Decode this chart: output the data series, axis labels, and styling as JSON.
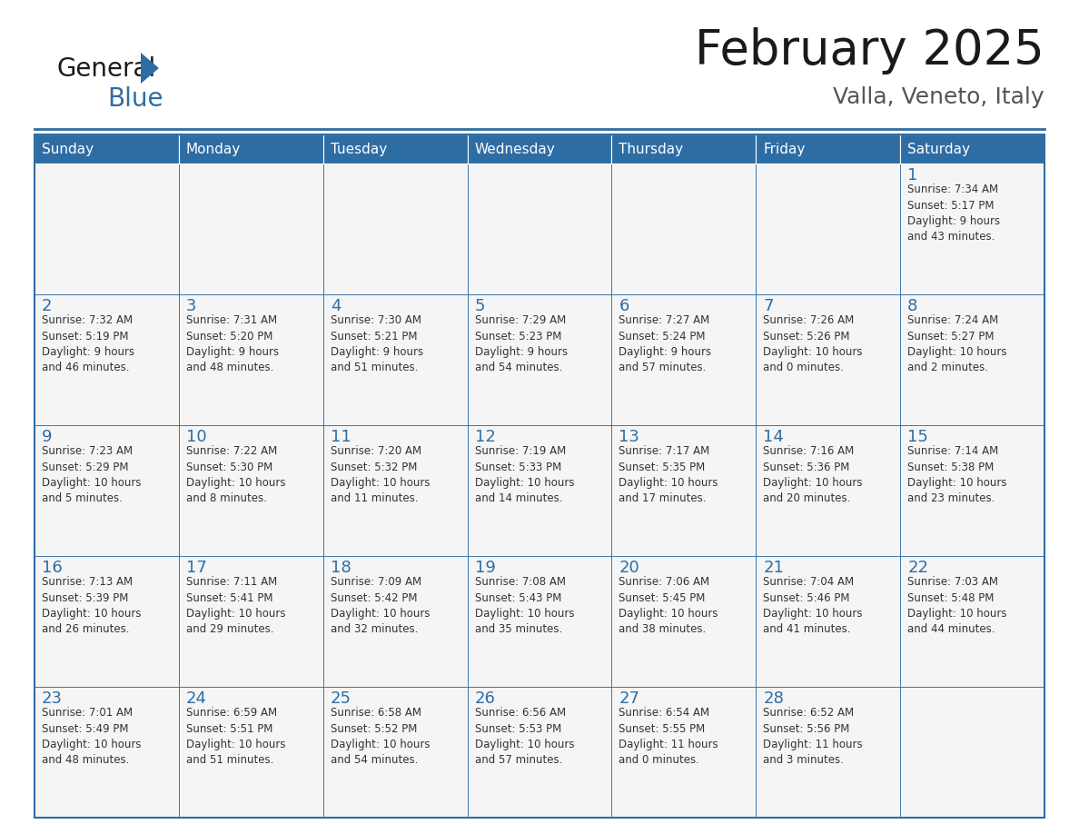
{
  "title": "February 2025",
  "subtitle": "Valla, Veneto, Italy",
  "header_bg": "#2E6DA4",
  "header_text": "#FFFFFF",
  "cell_bg": "#F5F5F5",
  "border_color": "#2E6DA4",
  "day_names": [
    "Sunday",
    "Monday",
    "Tuesday",
    "Wednesday",
    "Thursday",
    "Friday",
    "Saturday"
  ],
  "title_color": "#1a1a1a",
  "subtitle_color": "#555555",
  "day_number_color": "#2E6DA4",
  "cell_text_color": "#333333",
  "logo_general_color": "#1a1a1a",
  "logo_blue_color": "#2E6DA4",
  "logo_triangle_color": "#2E6DA4",
  "weeks": [
    [
      {
        "day": "",
        "info": ""
      },
      {
        "day": "",
        "info": ""
      },
      {
        "day": "",
        "info": ""
      },
      {
        "day": "",
        "info": ""
      },
      {
        "day": "",
        "info": ""
      },
      {
        "day": "",
        "info": ""
      },
      {
        "day": "1",
        "info": "Sunrise: 7:34 AM\nSunset: 5:17 PM\nDaylight: 9 hours\nand 43 minutes."
      }
    ],
    [
      {
        "day": "2",
        "info": "Sunrise: 7:32 AM\nSunset: 5:19 PM\nDaylight: 9 hours\nand 46 minutes."
      },
      {
        "day": "3",
        "info": "Sunrise: 7:31 AM\nSunset: 5:20 PM\nDaylight: 9 hours\nand 48 minutes."
      },
      {
        "day": "4",
        "info": "Sunrise: 7:30 AM\nSunset: 5:21 PM\nDaylight: 9 hours\nand 51 minutes."
      },
      {
        "day": "5",
        "info": "Sunrise: 7:29 AM\nSunset: 5:23 PM\nDaylight: 9 hours\nand 54 minutes."
      },
      {
        "day": "6",
        "info": "Sunrise: 7:27 AM\nSunset: 5:24 PM\nDaylight: 9 hours\nand 57 minutes."
      },
      {
        "day": "7",
        "info": "Sunrise: 7:26 AM\nSunset: 5:26 PM\nDaylight: 10 hours\nand 0 minutes."
      },
      {
        "day": "8",
        "info": "Sunrise: 7:24 AM\nSunset: 5:27 PM\nDaylight: 10 hours\nand 2 minutes."
      }
    ],
    [
      {
        "day": "9",
        "info": "Sunrise: 7:23 AM\nSunset: 5:29 PM\nDaylight: 10 hours\nand 5 minutes."
      },
      {
        "day": "10",
        "info": "Sunrise: 7:22 AM\nSunset: 5:30 PM\nDaylight: 10 hours\nand 8 minutes."
      },
      {
        "day": "11",
        "info": "Sunrise: 7:20 AM\nSunset: 5:32 PM\nDaylight: 10 hours\nand 11 minutes."
      },
      {
        "day": "12",
        "info": "Sunrise: 7:19 AM\nSunset: 5:33 PM\nDaylight: 10 hours\nand 14 minutes."
      },
      {
        "day": "13",
        "info": "Sunrise: 7:17 AM\nSunset: 5:35 PM\nDaylight: 10 hours\nand 17 minutes."
      },
      {
        "day": "14",
        "info": "Sunrise: 7:16 AM\nSunset: 5:36 PM\nDaylight: 10 hours\nand 20 minutes."
      },
      {
        "day": "15",
        "info": "Sunrise: 7:14 AM\nSunset: 5:38 PM\nDaylight: 10 hours\nand 23 minutes."
      }
    ],
    [
      {
        "day": "16",
        "info": "Sunrise: 7:13 AM\nSunset: 5:39 PM\nDaylight: 10 hours\nand 26 minutes."
      },
      {
        "day": "17",
        "info": "Sunrise: 7:11 AM\nSunset: 5:41 PM\nDaylight: 10 hours\nand 29 minutes."
      },
      {
        "day": "18",
        "info": "Sunrise: 7:09 AM\nSunset: 5:42 PM\nDaylight: 10 hours\nand 32 minutes."
      },
      {
        "day": "19",
        "info": "Sunrise: 7:08 AM\nSunset: 5:43 PM\nDaylight: 10 hours\nand 35 minutes."
      },
      {
        "day": "20",
        "info": "Sunrise: 7:06 AM\nSunset: 5:45 PM\nDaylight: 10 hours\nand 38 minutes."
      },
      {
        "day": "21",
        "info": "Sunrise: 7:04 AM\nSunset: 5:46 PM\nDaylight: 10 hours\nand 41 minutes."
      },
      {
        "day": "22",
        "info": "Sunrise: 7:03 AM\nSunset: 5:48 PM\nDaylight: 10 hours\nand 44 minutes."
      }
    ],
    [
      {
        "day": "23",
        "info": "Sunrise: 7:01 AM\nSunset: 5:49 PM\nDaylight: 10 hours\nand 48 minutes."
      },
      {
        "day": "24",
        "info": "Sunrise: 6:59 AM\nSunset: 5:51 PM\nDaylight: 10 hours\nand 51 minutes."
      },
      {
        "day": "25",
        "info": "Sunrise: 6:58 AM\nSunset: 5:52 PM\nDaylight: 10 hours\nand 54 minutes."
      },
      {
        "day": "26",
        "info": "Sunrise: 6:56 AM\nSunset: 5:53 PM\nDaylight: 10 hours\nand 57 minutes."
      },
      {
        "day": "27",
        "info": "Sunrise: 6:54 AM\nSunset: 5:55 PM\nDaylight: 11 hours\nand 0 minutes."
      },
      {
        "day": "28",
        "info": "Sunrise: 6:52 AM\nSunset: 5:56 PM\nDaylight: 11 hours\nand 3 minutes."
      },
      {
        "day": "",
        "info": ""
      }
    ]
  ]
}
